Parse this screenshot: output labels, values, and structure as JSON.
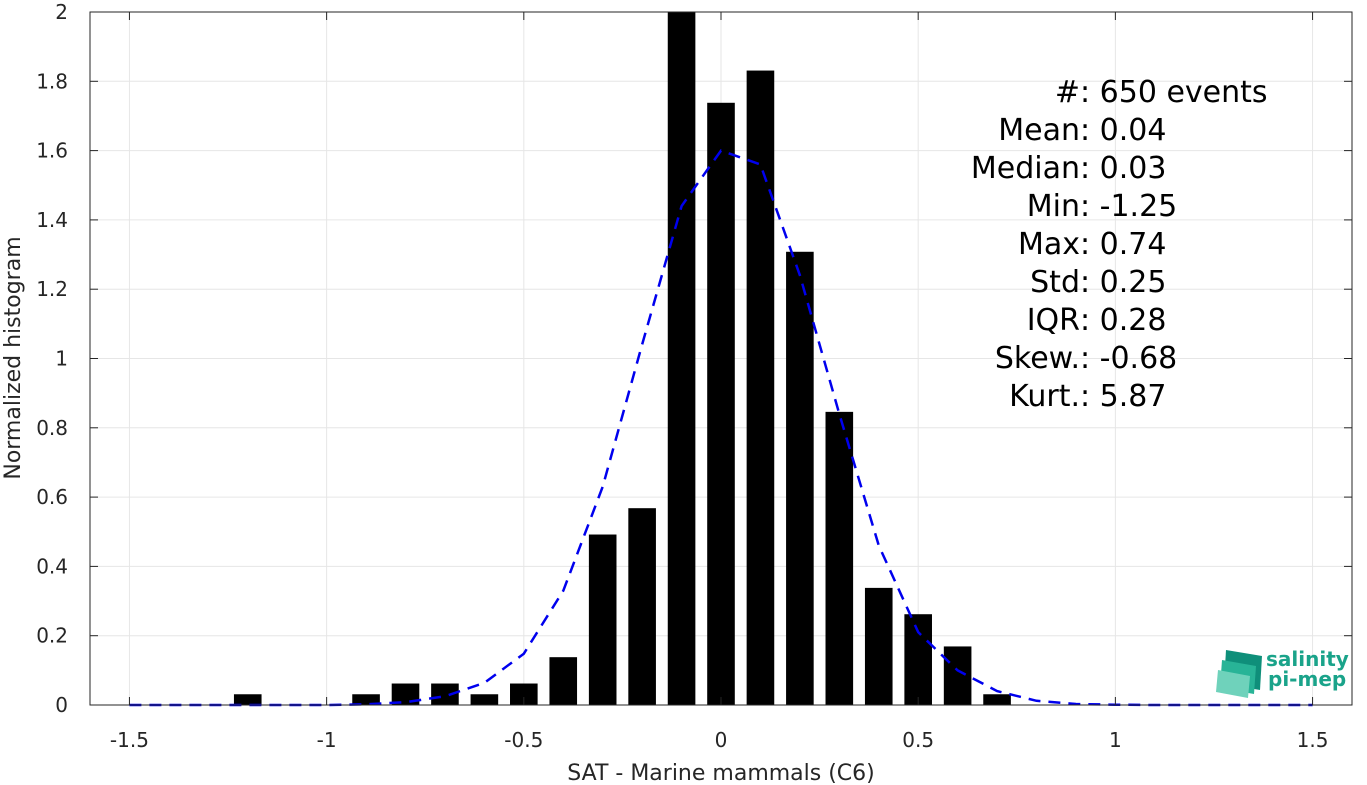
{
  "chart_data": {
    "type": "bar",
    "xlabel": "SAT - Marine mammals (C6)",
    "ylabel": "Normalized histogram",
    "xlim": [
      -1.6,
      1.6
    ],
    "ylim": [
      0,
      2
    ],
    "xticks": [
      -1.5,
      -1,
      -0.5,
      0,
      0.5,
      1,
      1.5
    ],
    "xtick_labels": [
      "-1.5",
      "-1",
      "-0.5",
      "0",
      "0.5",
      "1",
      "1.5"
    ],
    "yticks": [
      0,
      0.2,
      0.4,
      0.6,
      0.8,
      1,
      1.2,
      1.4,
      1.6,
      1.8,
      2
    ],
    "ytick_labels": [
      "0",
      "0.2",
      "0.4",
      "0.6",
      "0.8",
      "1",
      "1.2",
      "1.4",
      "1.6",
      "1.8",
      "2"
    ],
    "grid": true,
    "bar_color": "#000000",
    "bar_width": 0.07,
    "bars": {
      "x": [
        -1.2,
        -0.9,
        -0.8,
        -0.7,
        -0.6,
        -0.5,
        -0.4,
        -0.3,
        -0.2,
        -0.1,
        0.0,
        0.1,
        0.2,
        0.3,
        0.4,
        0.5,
        0.6,
        0.7
      ],
      "values": [
        0.031,
        0.031,
        0.062,
        0.062,
        0.031,
        0.062,
        0.138,
        0.492,
        0.568,
        2.0,
        1.738,
        1.831,
        1.308,
        0.846,
        0.338,
        0.262,
        0.169,
        0.031
      ]
    },
    "fit_curve": {
      "style": "dashed",
      "color": "#0000ee",
      "x": [
        -1.5,
        -1.4,
        -1.3,
        -1.2,
        -1.1,
        -1.0,
        -0.9,
        -0.8,
        -0.7,
        -0.6,
        -0.5,
        -0.4,
        -0.3,
        -0.2,
        -0.1,
        0.0,
        0.1,
        0.2,
        0.3,
        0.4,
        0.5,
        0.6,
        0.7,
        0.8,
        0.9,
        1.0,
        1.1,
        1.2,
        1.3,
        1.4,
        1.5
      ],
      "values": [
        0,
        0,
        0,
        0,
        0,
        0,
        0.002,
        0.008,
        0.025,
        0.064,
        0.148,
        0.33,
        0.63,
        1.04,
        1.44,
        1.6,
        1.56,
        1.24,
        0.84,
        0.46,
        0.21,
        0.1,
        0.04,
        0.012,
        0.003,
        0.001,
        0,
        0,
        0,
        0,
        0
      ]
    },
    "annotations": [
      {
        "label": "#  ",
        "value": ": 650 events"
      },
      {
        "label": "Mean ",
        "value": ": 0.04"
      },
      {
        "label": "Median ",
        "value": ": 0.03"
      },
      {
        "label": "Min ",
        "value": ": -1.25"
      },
      {
        "label": "Max ",
        "value": ": 0.74"
      },
      {
        "label": "Std ",
        "value": ": 0.25"
      },
      {
        "label": "IQR ",
        "value": ": 0.28"
      },
      {
        "label": "Skew. ",
        "value": ": -0.68"
      },
      {
        "label": "Kurt. ",
        "value": ": 5.87"
      }
    ]
  },
  "logo": {
    "line1": "salinity",
    "line2": "pi-mep",
    "color": "#1aa38a"
  }
}
